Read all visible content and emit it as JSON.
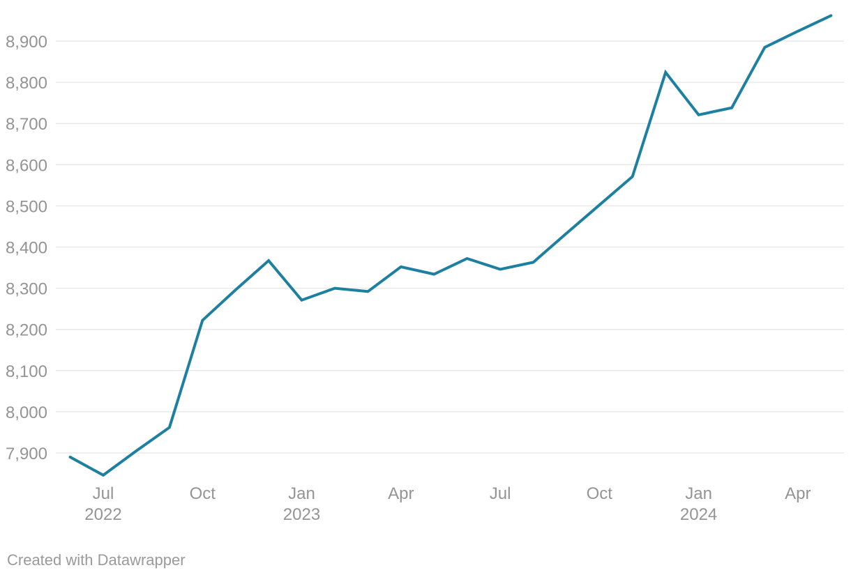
{
  "chart_data": {
    "type": "line",
    "title": "",
    "xlabel": "",
    "ylabel": "",
    "legend": "none",
    "grid": true,
    "x_labels": [
      "Jun 2022",
      "Jul 2022",
      "Aug 2022",
      "Sep 2022",
      "Oct 2022",
      "Nov 2022",
      "Dec 2022",
      "Jan 2023",
      "Feb 2023",
      "Mar 2023",
      "Apr 2023",
      "May 2023",
      "Jun 2023",
      "Jul 2023",
      "Aug 2023",
      "Sep 2023",
      "Oct 2023",
      "Nov 2023",
      "Dec 2023",
      "Jan 2024",
      "Feb 2024",
      "Mar 2024",
      "Apr 2024",
      "May 2024"
    ],
    "series": [
      {
        "name": "value",
        "color": "#1d80a0",
        "values": [
          7890,
          7846,
          7905,
          7962,
          8222,
          8296,
          8367,
          8271,
          8300,
          8292,
          8352,
          8334,
          8372,
          8346,
          8363,
          8433,
          8502,
          8571,
          8824,
          8721,
          8738,
          8885,
          8924,
          8962
        ]
      }
    ],
    "ylim": [
      7800,
      8970
    ],
    "y_axis": {
      "ticks": [
        {
          "value": 7900,
          "label": "7,900"
        },
        {
          "value": 8000,
          "label": "8,000"
        },
        {
          "value": 8100,
          "label": "8,100"
        },
        {
          "value": 8200,
          "label": "8,200"
        },
        {
          "value": 8300,
          "label": "8,300"
        },
        {
          "value": 8400,
          "label": "8,400"
        },
        {
          "value": 8500,
          "label": "8,500"
        },
        {
          "value": 8600,
          "label": "8,600"
        },
        {
          "value": 8700,
          "label": "8,700"
        },
        {
          "value": 8800,
          "label": "8,800"
        },
        {
          "value": 8900,
          "label": "8,900"
        }
      ]
    },
    "x_axis": {
      "ticks": [
        {
          "month": "Jul",
          "year": "2022",
          "index": 1
        },
        {
          "month": "Oct",
          "year": "",
          "index": 4
        },
        {
          "month": "Jan",
          "year": "2023",
          "index": 7
        },
        {
          "month": "Apr",
          "year": "",
          "index": 10
        },
        {
          "month": "Jul",
          "year": "",
          "index": 13
        },
        {
          "month": "Oct",
          "year": "",
          "index": 16
        },
        {
          "month": "Jan",
          "year": "2024",
          "index": 19
        },
        {
          "month": "Apr",
          "year": "",
          "index": 22
        }
      ]
    },
    "colors": {
      "line": "#1d80a0",
      "grid": "#e9e9e9",
      "tick_text": "#949494"
    }
  },
  "footer": {
    "credit": "Created with Datawrapper"
  }
}
